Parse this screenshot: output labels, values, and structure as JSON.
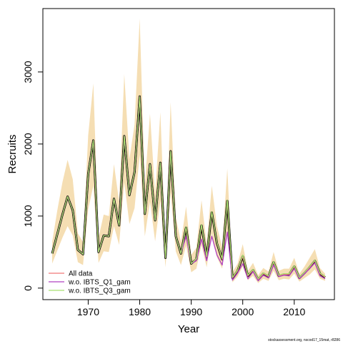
{
  "chart_data": {
    "type": "line",
    "title": "",
    "xlabel": "Year",
    "ylabel": "Recruits",
    "xlim": [
      1961.2,
      2017.8
    ],
    "ylim": [
      -160,
      3880
    ],
    "x_ticks": [
      1970,
      1980,
      1990,
      2000,
      2010
    ],
    "y_ticks": [
      0,
      1000,
      2000,
      3000
    ],
    "grid": false,
    "legend_position": "bottom-left",
    "colors": {
      "band": "#f5deb3",
      "estimate": "#000000",
      "all_data": "#f07878",
      "q1": "#b040c0",
      "q3": "#a8e070"
    },
    "x": [
      1963,
      1964,
      1965,
      1966,
      1967,
      1968,
      1969,
      1970,
      1971,
      1972,
      1973,
      1974,
      1975,
      1976,
      1977,
      1978,
      1979,
      1980,
      1981,
      1982,
      1983,
      1984,
      1985,
      1986,
      1987,
      1988,
      1989,
      1990,
      1991,
      1992,
      1993,
      1994,
      1995,
      1996,
      1997,
      1998,
      1999,
      2000,
      2001,
      2002,
      2003,
      2004,
      2005,
      2006,
      2007,
      2008,
      2009,
      2010,
      2011,
      2012,
      2013,
      2014,
      2015,
      2016
    ],
    "estimate": [
      480,
      750,
      1020,
      1270,
      1080,
      530,
      470,
      1580,
      2050,
      500,
      730,
      720,
      1240,
      870,
      2110,
      1290,
      1610,
      2660,
      1030,
      1720,
      940,
      1740,
      420,
      1900,
      720,
      480,
      840,
      340,
      400,
      870,
      430,
      1050,
      620,
      400,
      1210,
      140,
      240,
      440,
      170,
      250,
      120,
      200,
      160,
      360,
      170,
      190,
      190,
      300,
      140,
      210,
      290,
      380,
      200,
      150
    ],
    "series": [
      {
        "name": "All data",
        "values": [
          480,
          750,
          1020,
          1270,
          1080,
          530,
          470,
          1580,
          2050,
          500,
          730,
          720,
          1240,
          870,
          2110,
          1290,
          1610,
          2660,
          1030,
          1720,
          940,
          1740,
          420,
          1900,
          720,
          480,
          840,
          340,
          400,
          870,
          430,
          1050,
          620,
          400,
          1210,
          140,
          240,
          440,
          170,
          250,
          120,
          200,
          160,
          360,
          170,
          190,
          190,
          300,
          140,
          210,
          290,
          380,
          200,
          150
        ]
      },
      {
        "name": "w.o. IBTS_Q1_gam",
        "values": [
          480,
          750,
          1020,
          1270,
          1080,
          530,
          470,
          1580,
          2050,
          500,
          730,
          720,
          1240,
          870,
          2110,
          1290,
          1610,
          2660,
          1030,
          1720,
          940,
          1740,
          420,
          1900,
          720,
          480,
          720,
          340,
          380,
          680,
          380,
          720,
          460,
          320,
          780,
          110,
          210,
          340,
          130,
          230,
          100,
          180,
          140,
          320,
          160,
          180,
          170,
          270,
          130,
          200,
          270,
          350,
          170,
          130
        ]
      },
      {
        "name": "w.o. IBTS_Q3_gam",
        "values": [
          480,
          750,
          1020,
          1270,
          1080,
          530,
          470,
          1580,
          2050,
          500,
          730,
          720,
          1240,
          870,
          2110,
          1290,
          1610,
          2660,
          1030,
          1720,
          940,
          1740,
          420,
          1900,
          720,
          480,
          850,
          340,
          410,
          880,
          440,
          1060,
          630,
          410,
          1220,
          150,
          250,
          460,
          180,
          260,
          130,
          210,
          170,
          370,
          180,
          200,
          200,
          310,
          150,
          220,
          300,
          390,
          210,
          160
        ]
      }
    ],
    "band_upper": [
      640,
      1080,
      1470,
      1780,
      1510,
      760,
      640,
      2120,
      2840,
      700,
      1020,
      1000,
      1720,
      1200,
      2970,
      1790,
      2270,
      3740,
      1430,
      2420,
      1310,
      2440,
      580,
      2580,
      990,
      640,
      1130,
      460,
      560,
      1220,
      610,
      1420,
      860,
      570,
      1660,
      220,
      340,
      610,
      240,
      350,
      180,
      280,
      230,
      500,
      240,
      270,
      270,
      420,
      200,
      300,
      420,
      540,
      280,
      200
    ],
    "band_lower": [
      340,
      520,
      700,
      860,
      730,
      360,
      320,
      1090,
      1420,
      350,
      510,
      500,
      860,
      600,
      1470,
      890,
      1110,
      1850,
      720,
      1200,
      650,
      1210,
      290,
      1330,
      510,
      320,
      590,
      220,
      270,
      600,
      290,
      760,
      430,
      270,
      800,
      80,
      160,
      300,
      110,
      170,
      70,
      130,
      100,
      240,
      110,
      130,
      120,
      200,
      90,
      140,
      190,
      260,
      130,
      100
    ],
    "legend": [
      "All data",
      "w.o. IBTS_Q1_gam",
      "w.o. IBTS_Q3_gam"
    ]
  },
  "credit": "stockassessment.org,  nscod17_15mat,  r8286"
}
